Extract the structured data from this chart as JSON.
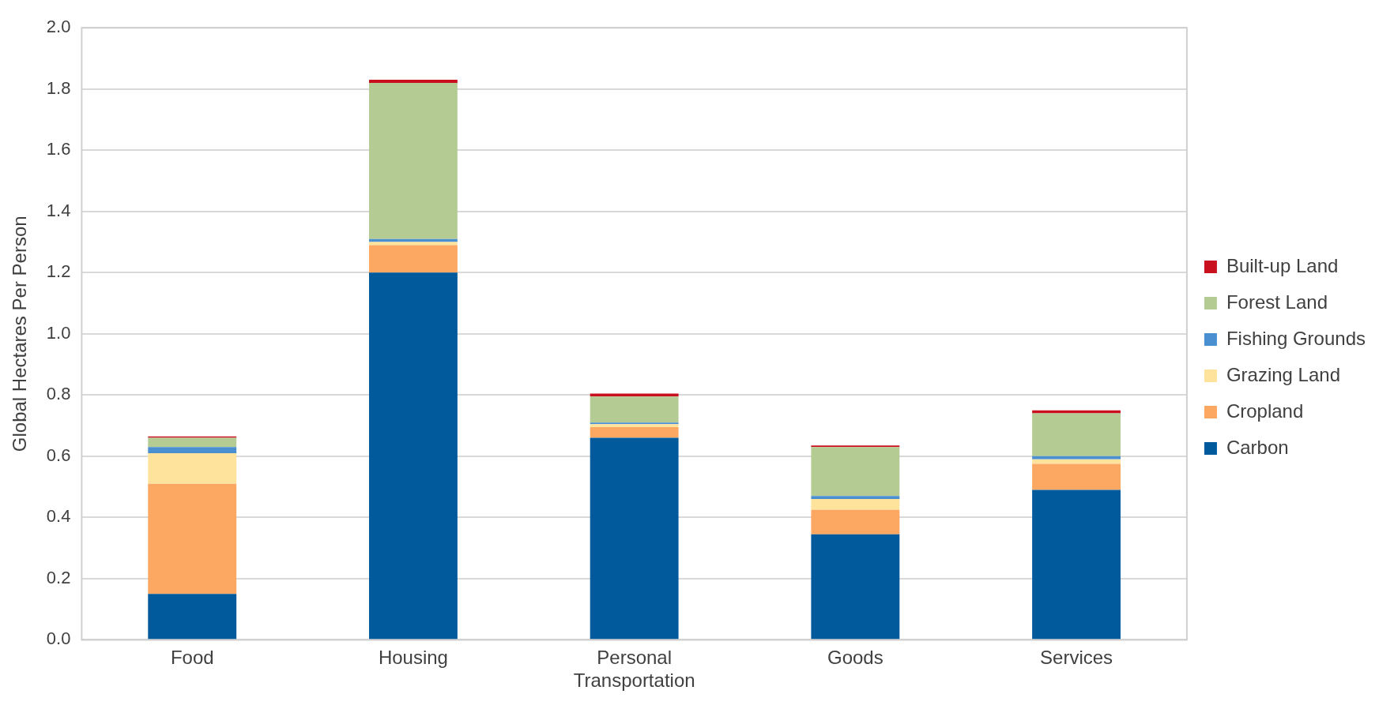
{
  "chart_data": {
    "type": "bar",
    "stacked": true,
    "ylabel": "Global Hectares Per Person",
    "categories": [
      "Food",
      "Housing",
      "Personal Transportation",
      "Goods",
      "Services"
    ],
    "ylim": [
      0,
      2
    ],
    "yticks": [
      {
        "value": 0,
        "label": "0.0"
      },
      {
        "value": 0.2,
        "label": "0.2"
      },
      {
        "value": 0.4,
        "label": "0.4"
      },
      {
        "value": 0.6,
        "label": "0.6"
      },
      {
        "value": 0.8,
        "label": "0.8"
      },
      {
        "value": 1,
        "label": "1.0"
      },
      {
        "value": 1.2,
        "label": "1.2"
      },
      {
        "value": 1.4,
        "label": "1.4"
      },
      {
        "value": 1.6,
        "label": "1.6"
      },
      {
        "value": 1.8,
        "label": "1.8"
      },
      {
        "value": 2,
        "label": "2.0"
      }
    ],
    "grid": "y",
    "legend": "right",
    "series": [
      {
        "name": "Carbon",
        "color": "#005a9c",
        "values": [
          0.15,
          1.2,
          0.66,
          0.345,
          0.49
        ]
      },
      {
        "name": "Cropland",
        "color": "#fda862",
        "values": [
          0.36,
          0.09,
          0.035,
          0.08,
          0.085
        ]
      },
      {
        "name": "Grazing Land",
        "color": "#fee39c",
        "values": [
          0.1,
          0.01,
          0.01,
          0.035,
          0.015
        ]
      },
      {
        "name": "Fishing Grounds",
        "color": "#4a8fd0",
        "values": [
          0.02,
          0.01,
          0.005,
          0.01,
          0.01
        ]
      },
      {
        "name": "Forest Land",
        "color": "#b4cc94",
        "values": [
          0.03,
          0.51,
          0.085,
          0.16,
          0.14
        ]
      },
      {
        "name": "Built-up Land",
        "color": "#c8101e",
        "values": [
          0.005,
          0.01,
          0.01,
          0.005,
          0.01
        ]
      }
    ]
  }
}
